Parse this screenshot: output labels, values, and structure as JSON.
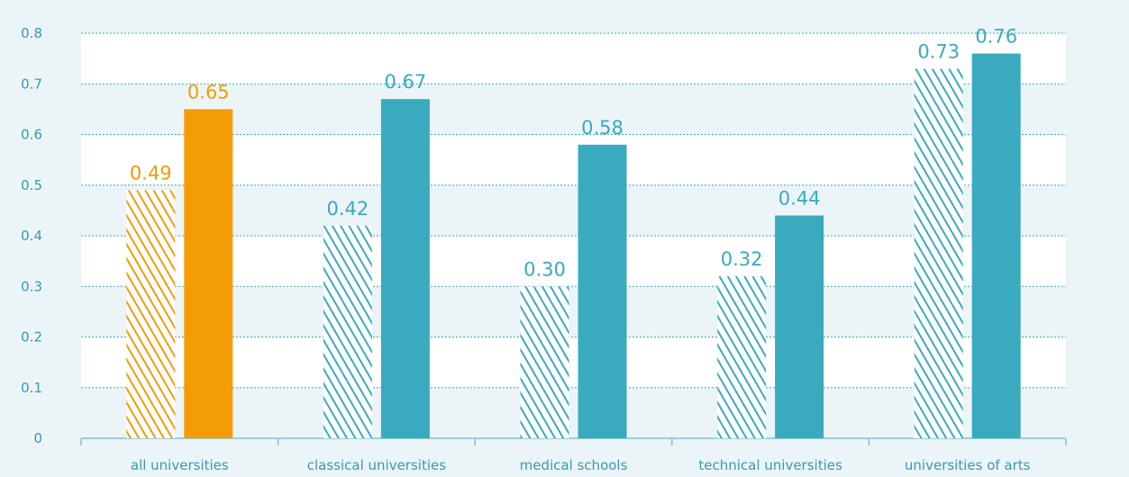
{
  "chart_data": {
    "type": "bar",
    "categories": [
      "all universities",
      "classical universities",
      "medical schools",
      "technical universities",
      "universities of arts"
    ],
    "series": [
      {
        "values": [
          0.49,
          0.42,
          0.3,
          0.32,
          0.73
        ],
        "value_labels": [
          "0.49",
          "0.42",
          "0.30",
          "0.32",
          "0.73"
        ],
        "pattern": "hatched"
      },
      {
        "values": [
          0.65,
          0.67,
          0.58,
          0.44,
          0.76
        ],
        "value_labels": [
          "0.65",
          "0.67",
          "0.58",
          "0.44",
          "0.76"
        ],
        "pattern": "solid"
      }
    ],
    "highlight_category": "all universities",
    "ylim": [
      0,
      0.8
    ],
    "yticks": [
      0,
      0.1,
      0.2,
      0.3,
      0.4,
      0.5,
      0.6,
      0.7,
      0.8
    ],
    "ytick_labels": [
      "0",
      "0.1",
      "0.2",
      "0.3",
      "0.4",
      "0.5",
      "0.6",
      "0.7",
      "0.8"
    ],
    "grid": true,
    "grid_style": "dotted",
    "legend": "none",
    "colors": {
      "background": "#ebf4f7",
      "plot_band": "#ffffff",
      "teal": "#3aaabf",
      "orange": "#f39c05",
      "tick_text": "#3a99b5",
      "grid": "#3aaabf",
      "axis": "#7fc4d3"
    }
  }
}
